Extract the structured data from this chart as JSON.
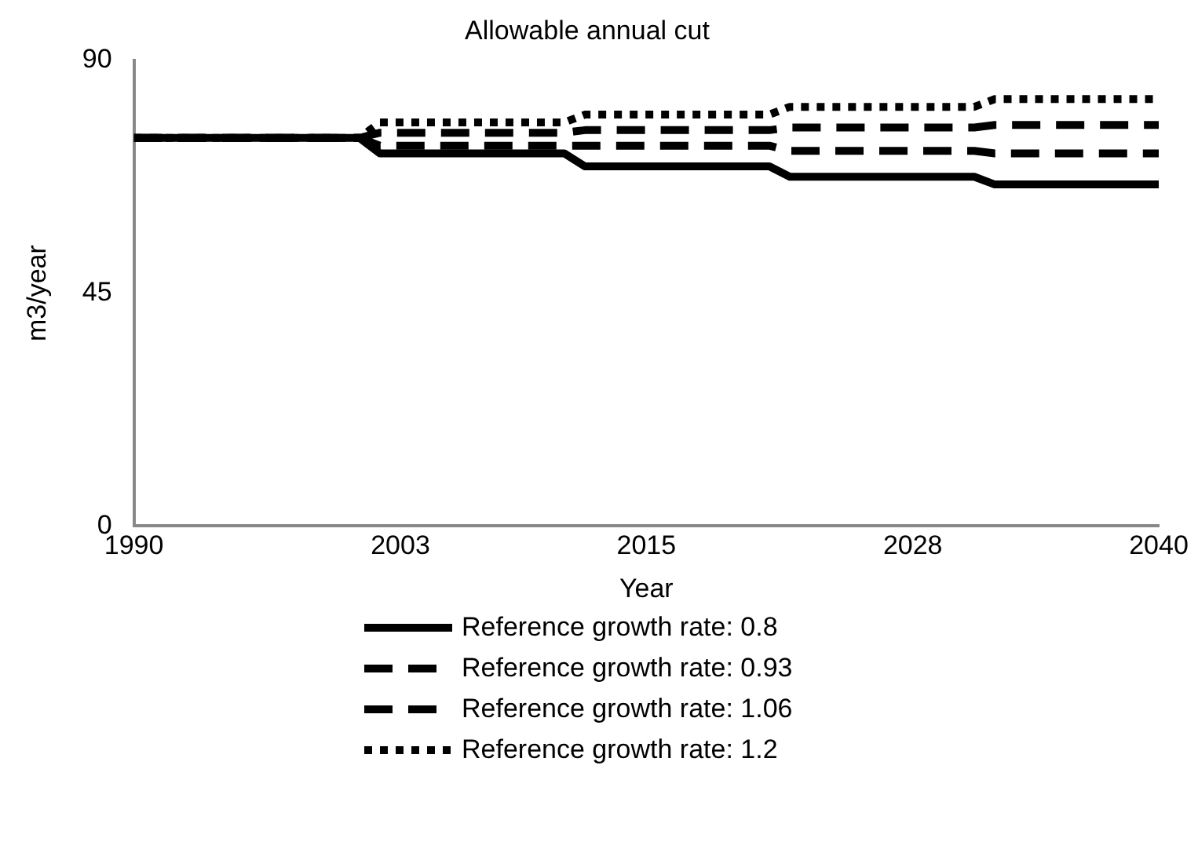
{
  "chart_data": {
    "type": "line",
    "title": "Allowable annual cut",
    "xlabel": "Year",
    "ylabel": "m3/year",
    "x": [
      1990,
      2001,
      2002,
      2011,
      2012,
      2021,
      2022,
      2031,
      2032,
      2040
    ],
    "xlim": [
      1990,
      2040
    ],
    "xticks": [
      1990,
      2003,
      2015,
      2028,
      2040
    ],
    "ylim": [
      0,
      90
    ],
    "yticks": [
      0,
      45,
      90
    ],
    "grid": false,
    "legend": "bottom",
    "marker": "none",
    "series": [
      {
        "name": "Reference growth rate: 0.8",
        "color": "#000000",
        "line_style": "solid",
        "values": [
          75,
          75,
          72,
          72,
          69.5,
          69.5,
          67.5,
          67.5,
          66,
          66
        ]
      },
      {
        "name": "Reference growth rate: 0.93",
        "color": "#000000",
        "line_style": "dashed",
        "values": [
          75,
          75,
          73.5,
          73.5,
          73.5,
          73.5,
          72.5,
          72.5,
          72,
          72
        ]
      },
      {
        "name": "Reference growth rate: 1.06",
        "color": "#000000",
        "line_style": "dashed",
        "values": [
          75,
          75,
          76,
          76,
          76.5,
          76.5,
          77,
          77,
          77.5,
          77.5
        ]
      },
      {
        "name": "Reference growth rate: 1.2",
        "color": "#000000",
        "line_style": "dotted",
        "values": [
          75,
          75,
          78,
          78,
          79.5,
          79.5,
          81,
          81,
          82.5,
          82.5
        ]
      }
    ]
  }
}
